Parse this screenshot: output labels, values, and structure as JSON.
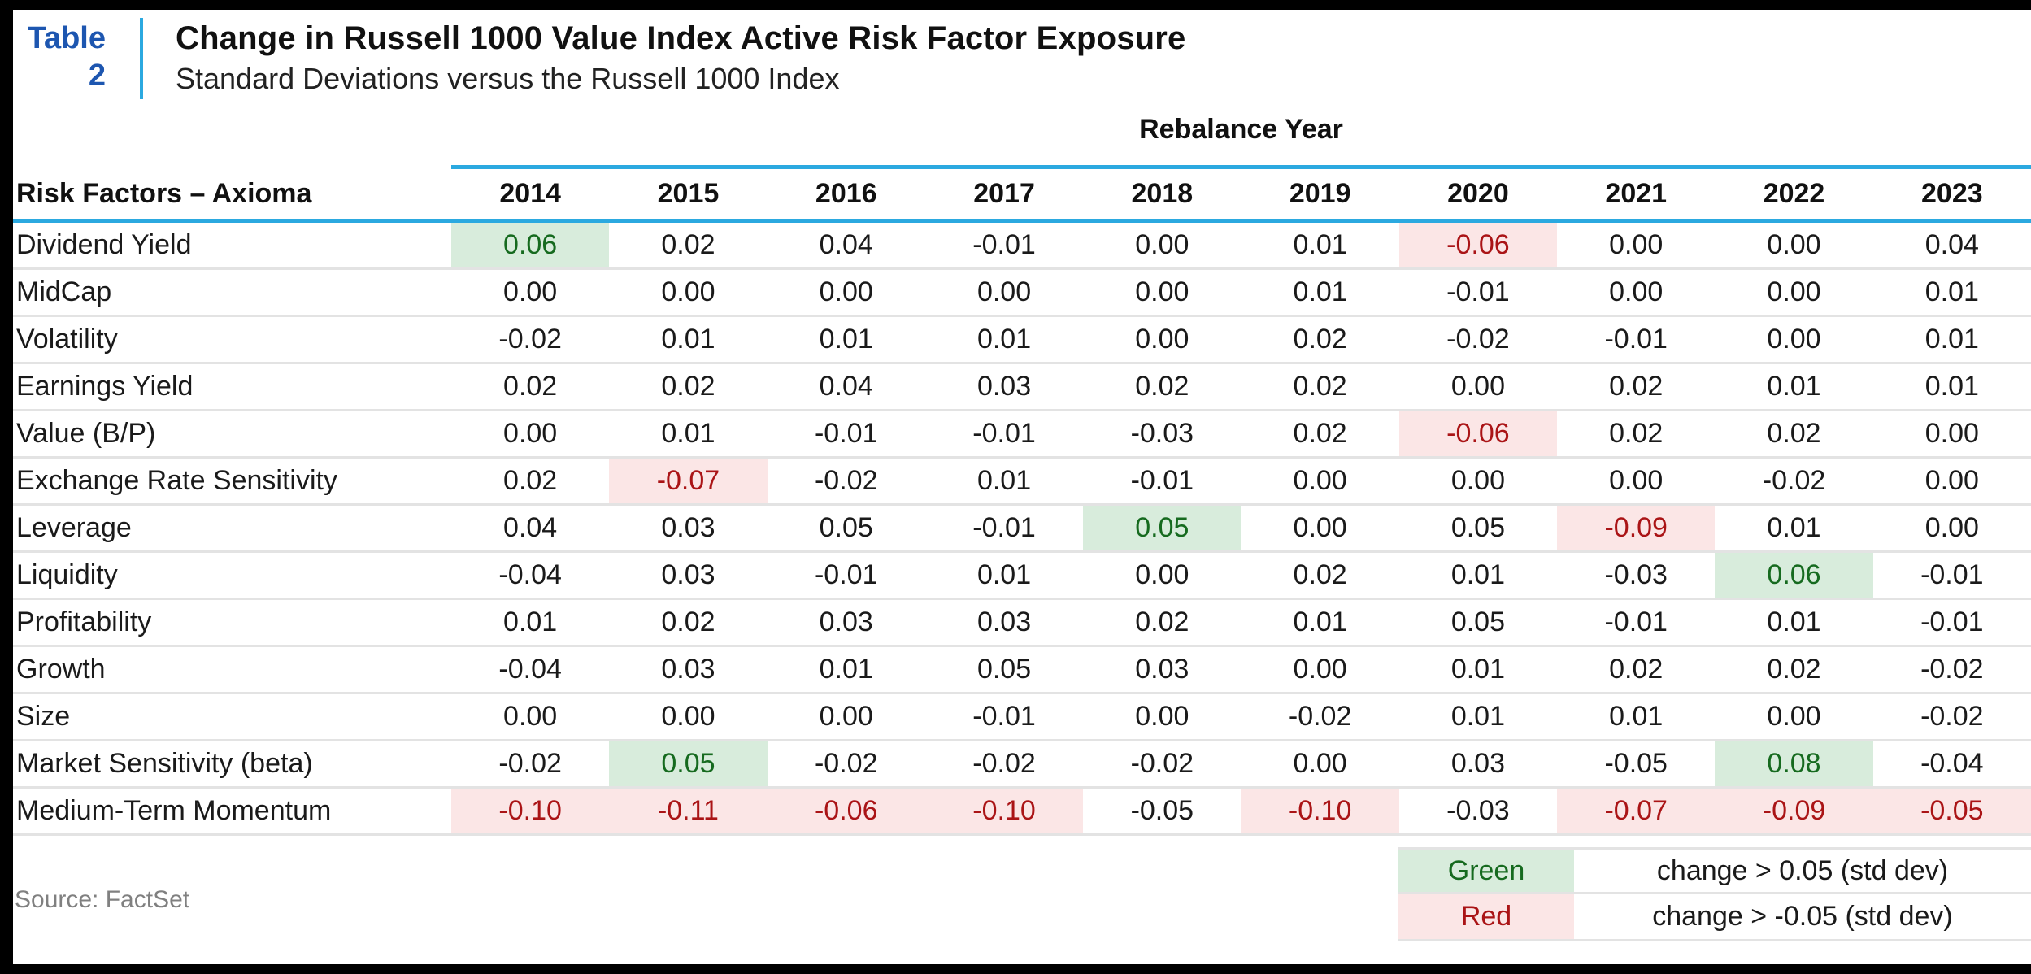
{
  "header": {
    "label_word": "Table",
    "label_number": "2",
    "title": "Change in Russell 1000 Value Index Active Risk Factor Exposure",
    "subtitle": "Standard Deviations versus the Russell 1000 Index"
  },
  "table": {
    "group_header": "Rebalance Year",
    "row_header": "Risk Factors – Axioma",
    "years": [
      "2014",
      "2015",
      "2016",
      "2017",
      "2018",
      "2019",
      "2020",
      "2021",
      "2022",
      "2023"
    ],
    "rows": [
      {
        "label": "Dividend Yield",
        "values": [
          "0.06",
          "0.02",
          "0.04",
          "-0.01",
          "0.00",
          "0.01",
          "-0.06",
          "0.00",
          "0.00",
          "0.04"
        ],
        "hl": [
          "g",
          "",
          "",
          "",
          "",
          "",
          "r",
          "",
          "",
          ""
        ]
      },
      {
        "label": "MidCap",
        "values": [
          "0.00",
          "0.00",
          "0.00",
          "0.00",
          "0.00",
          "0.01",
          "-0.01",
          "0.00",
          "0.00",
          "0.01"
        ],
        "hl": [
          "",
          "",
          "",
          "",
          "",
          "",
          "",
          "",
          "",
          ""
        ]
      },
      {
        "label": "Volatility",
        "values": [
          "-0.02",
          "0.01",
          "0.01",
          "0.01",
          "0.00",
          "0.02",
          "-0.02",
          "-0.01",
          "0.00",
          "0.01"
        ],
        "hl": [
          "",
          "",
          "",
          "",
          "",
          "",
          "",
          "",
          "",
          ""
        ]
      },
      {
        "label": "Earnings Yield",
        "values": [
          "0.02",
          "0.02",
          "0.04",
          "0.03",
          "0.02",
          "0.02",
          "0.00",
          "0.02",
          "0.01",
          "0.01"
        ],
        "hl": [
          "",
          "",
          "",
          "",
          "",
          "",
          "",
          "",
          "",
          ""
        ]
      },
      {
        "label": "Value (B/P)",
        "values": [
          "0.00",
          "0.01",
          "-0.01",
          "-0.01",
          "-0.03",
          "0.02",
          "-0.06",
          "0.02",
          "0.02",
          "0.00"
        ],
        "hl": [
          "",
          "",
          "",
          "",
          "",
          "",
          "r",
          "",
          "",
          ""
        ]
      },
      {
        "label": "Exchange Rate Sensitivity",
        "values": [
          "0.02",
          "-0.07",
          "-0.02",
          "0.01",
          "-0.01",
          "0.00",
          "0.00",
          "0.00",
          "-0.02",
          "0.00"
        ],
        "hl": [
          "",
          "r",
          "",
          "",
          "",
          "",
          "",
          "",
          "",
          ""
        ]
      },
      {
        "label": "Leverage",
        "values": [
          "0.04",
          "0.03",
          "0.05",
          "-0.01",
          "0.05",
          "0.00",
          "0.05",
          "-0.09",
          "0.01",
          "0.00"
        ],
        "hl": [
          "",
          "",
          "",
          "",
          "g",
          "",
          "",
          "r",
          "",
          ""
        ]
      },
      {
        "label": "Liquidity",
        "values": [
          "-0.04",
          "0.03",
          "-0.01",
          "0.01",
          "0.00",
          "0.02",
          "0.01",
          "-0.03",
          "0.06",
          "-0.01"
        ],
        "hl": [
          "",
          "",
          "",
          "",
          "",
          "",
          "",
          "",
          "g",
          ""
        ]
      },
      {
        "label": "Profitability",
        "values": [
          "0.01",
          "0.02",
          "0.03",
          "0.03",
          "0.02",
          "0.01",
          "0.05",
          "-0.01",
          "0.01",
          "-0.01"
        ],
        "hl": [
          "",
          "",
          "",
          "",
          "",
          "",
          "",
          "",
          "",
          ""
        ]
      },
      {
        "label": "Growth",
        "values": [
          "-0.04",
          "0.03",
          "0.01",
          "0.05",
          "0.03",
          "0.00",
          "0.01",
          "0.02",
          "0.02",
          "-0.02"
        ],
        "hl": [
          "",
          "",
          "",
          "",
          "",
          "",
          "",
          "",
          "",
          ""
        ]
      },
      {
        "label": "Size",
        "values": [
          "0.00",
          "0.00",
          "0.00",
          "-0.01",
          "0.00",
          "-0.02",
          "0.01",
          "0.01",
          "0.00",
          "-0.02"
        ],
        "hl": [
          "",
          "",
          "",
          "",
          "",
          "",
          "",
          "",
          "",
          ""
        ]
      },
      {
        "label": "Market Sensitivity (beta)",
        "values": [
          "-0.02",
          "0.05",
          "-0.02",
          "-0.02",
          "-0.02",
          "0.00",
          "0.03",
          "-0.05",
          "0.08",
          "-0.04"
        ],
        "hl": [
          "",
          "g",
          "",
          "",
          "",
          "",
          "",
          "",
          "g",
          ""
        ]
      },
      {
        "label": "Medium-Term Momentum",
        "values": [
          "-0.10",
          "-0.11",
          "-0.06",
          "-0.10",
          "-0.05",
          "-0.10",
          "-0.03",
          "-0.07",
          "-0.09",
          "-0.05"
        ],
        "hl": [
          "r",
          "r",
          "r",
          "r",
          "",
          "r",
          "",
          "r",
          "r",
          "r"
        ]
      }
    ]
  },
  "footer": {
    "source": "Source: FactSet",
    "legend": [
      {
        "label": "Green",
        "desc": "change > 0.05 (std dev)",
        "type": "g"
      },
      {
        "label": "Red",
        "desc": "change > -0.05 (std dev)",
        "type": "r"
      }
    ]
  },
  "colors": {
    "accent_blue_line": "#2BA9E0",
    "table_label_blue": "#1D56B0",
    "highlight_green_bg": "#D8ECDC",
    "highlight_green_text": "#166A1F",
    "highlight_red_bg": "#FBE6E6",
    "highlight_red_text": "#AA1416",
    "row_divider_gray": "#E3E3E3"
  }
}
